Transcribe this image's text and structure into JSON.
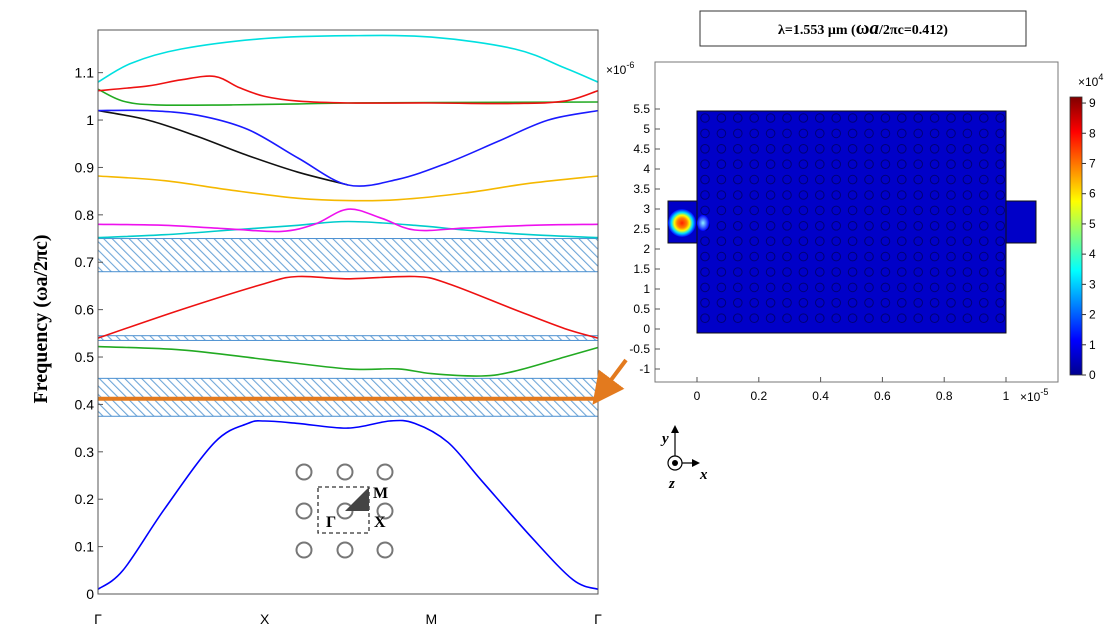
{
  "chart_data": [
    {
      "type": "line",
      "ylabel": "Frequency (ωa/2πc)",
      "ylim": [
        0,
        1.19
      ],
      "yticks": [
        "0",
        "0.1",
        "0.2",
        "0.3",
        "0.4",
        "0.5",
        "0.6",
        "0.7",
        "0.8",
        "0.9",
        "1",
        "1.1"
      ],
      "ytick_values": [
        0,
        0.1,
        0.2,
        0.3,
        0.4,
        0.5,
        0.6,
        0.7,
        0.8,
        0.9,
        1,
        1.1
      ],
      "categories": [
        "Γ",
        "X",
        "M",
        "Γ"
      ],
      "category_positions": [
        0,
        1,
        2,
        3
      ],
      "xlim": [
        0,
        3
      ],
      "series": [
        {
          "color": "#0000ff",
          "x": [
            0,
            0.15,
            0.4,
            0.7,
            0.9,
            1.0,
            1.2,
            1.5,
            1.75,
            1.9,
            2.1,
            2.3,
            2.6,
            2.85,
            3.0
          ],
          "y": [
            0.01,
            0.05,
            0.18,
            0.32,
            0.36,
            0.365,
            0.36,
            0.35,
            0.365,
            0.36,
            0.32,
            0.24,
            0.12,
            0.03,
            0.01
          ]
        },
        {
          "color": "#22aa22",
          "x": [
            0,
            0.5,
            1.0,
            1.5,
            1.8,
            2.0,
            2.3,
            2.5,
            2.8,
            3.0
          ],
          "y": [
            0.522,
            0.515,
            0.495,
            0.475,
            0.475,
            0.465,
            0.46,
            0.47,
            0.5,
            0.52
          ]
        },
        {
          "color": "#ee1111",
          "x": [
            0,
            0.5,
            1.0,
            1.2,
            1.5,
            1.9,
            2.1,
            2.5,
            2.8,
            3.0
          ],
          "y": [
            0.54,
            0.6,
            0.655,
            0.67,
            0.665,
            0.67,
            0.655,
            0.6,
            0.56,
            0.54
          ]
        },
        {
          "color": "#00cccc",
          "x": [
            0,
            0.4,
            0.8,
            1.2,
            1.5,
            1.9,
            2.2,
            2.6,
            3.0
          ],
          "y": [
            0.752,
            0.758,
            0.768,
            0.778,
            0.786,
            0.778,
            0.768,
            0.758,
            0.752
          ]
        },
        {
          "color": "#ee11ee",
          "x": [
            0,
            0.4,
            0.8,
            1.1,
            1.3,
            1.5,
            1.7,
            1.9,
            2.2,
            2.6,
            3.0
          ],
          "y": [
            0.78,
            0.778,
            0.77,
            0.765,
            0.78,
            0.812,
            0.793,
            0.768,
            0.772,
            0.778,
            0.78
          ]
        },
        {
          "color": "#f5b800",
          "x": [
            0,
            0.4,
            0.8,
            1.2,
            1.5,
            1.8,
            2.2,
            2.6,
            3.0
          ],
          "y": [
            0.882,
            0.872,
            0.852,
            0.835,
            0.83,
            0.832,
            0.846,
            0.867,
            0.882
          ]
        },
        {
          "color": "#111111",
          "x": [
            0,
            0.3,
            0.6,
            0.9,
            1.2,
            1.5
          ],
          "y": [
            1.02,
            1.0,
            0.965,
            0.925,
            0.89,
            0.863
          ]
        },
        {
          "color": "#1a1aff",
          "x": [
            0,
            0.3,
            0.6,
            0.9,
            1.2,
            1.5,
            1.8,
            2.1,
            2.4,
            2.7,
            3.0
          ],
          "y": [
            1.02,
            1.02,
            1.01,
            0.98,
            0.92,
            0.863,
            0.875,
            0.91,
            0.955,
            1.0,
            1.02
          ]
        },
        {
          "color": "#22aa22",
          "x": [
            0,
            0.15,
            0.35,
            0.8,
            1.2,
            1.5,
            2.0,
            3.0
          ],
          "y": [
            1.065,
            1.04,
            1.032,
            1.032,
            1.034,
            1.036,
            1.037,
            1.038
          ]
        },
        {
          "color": "#ee1111",
          "x": [
            0,
            0.3,
            0.5,
            0.7,
            0.85,
            1.0,
            1.2,
            1.5,
            2.0,
            2.5,
            2.8,
            3.0
          ],
          "y": [
            1.062,
            1.072,
            1.085,
            1.092,
            1.068,
            1.05,
            1.04,
            1.036,
            1.036,
            1.035,
            1.04,
            1.062
          ]
        },
        {
          "color": "#00e0e0",
          "x": [
            0,
            0.2,
            0.5,
            1.0,
            1.5,
            2.0,
            2.5,
            2.8,
            3.0
          ],
          "y": [
            1.08,
            1.12,
            1.15,
            1.172,
            1.178,
            1.175,
            1.15,
            1.11,
            1.08
          ]
        }
      ],
      "bandgaps": [
        [
          0.375,
          0.455
        ],
        [
          0.535,
          0.545
        ],
        [
          0.68,
          0.75
        ]
      ],
      "operating_line": 0.412,
      "inset": {
        "labels": [
          "M",
          "Γ",
          "X"
        ]
      }
    },
    {
      "type": "heatmap",
      "title": "λ=1.553 μm  (ωa/2πc=0.412)",
      "title_parts": {
        "lambda": "λ=1.553 μm  (",
        "omega": "ω",
        "a": "a",
        "tail": "/2πc=0.412)"
      },
      "xticks": [
        "0",
        "0.2",
        "0.4",
        "0.6",
        "0.8",
        "1"
      ],
      "xtick_values": [
        0,
        0.2,
        0.4,
        0.6,
        0.8,
        1
      ],
      "x_multiplier": "×10",
      "x_exponent": "-5",
      "xlim": [
        -0.1,
        1.15
      ],
      "yticks": [
        "-1",
        "-0.5",
        "0",
        "0.5",
        "1",
        "1.5",
        "2",
        "2.5",
        "3",
        "3.5",
        "4",
        "4.5",
        "5",
        "5.5"
      ],
      "ytick_values": [
        -1,
        -0.5,
        0,
        0.5,
        1,
        1.5,
        2,
        2.5,
        3,
        3.5,
        4,
        4.5,
        5,
        5.5
      ],
      "y_multiplier": "×10",
      "y_exponent": "-6",
      "ylim": [
        -1.3,
        6.0
      ],
      "colorbar": {
        "ticks": [
          "0",
          "1",
          "2",
          "3",
          "4",
          "5",
          "6",
          "7",
          "8",
          "9"
        ],
        "multiplier": "×10",
        "exponent": "4",
        "range": [
          0,
          9.2
        ]
      },
      "axes_labels": {
        "y": "y",
        "x": "x",
        "z": "z"
      }
    }
  ]
}
